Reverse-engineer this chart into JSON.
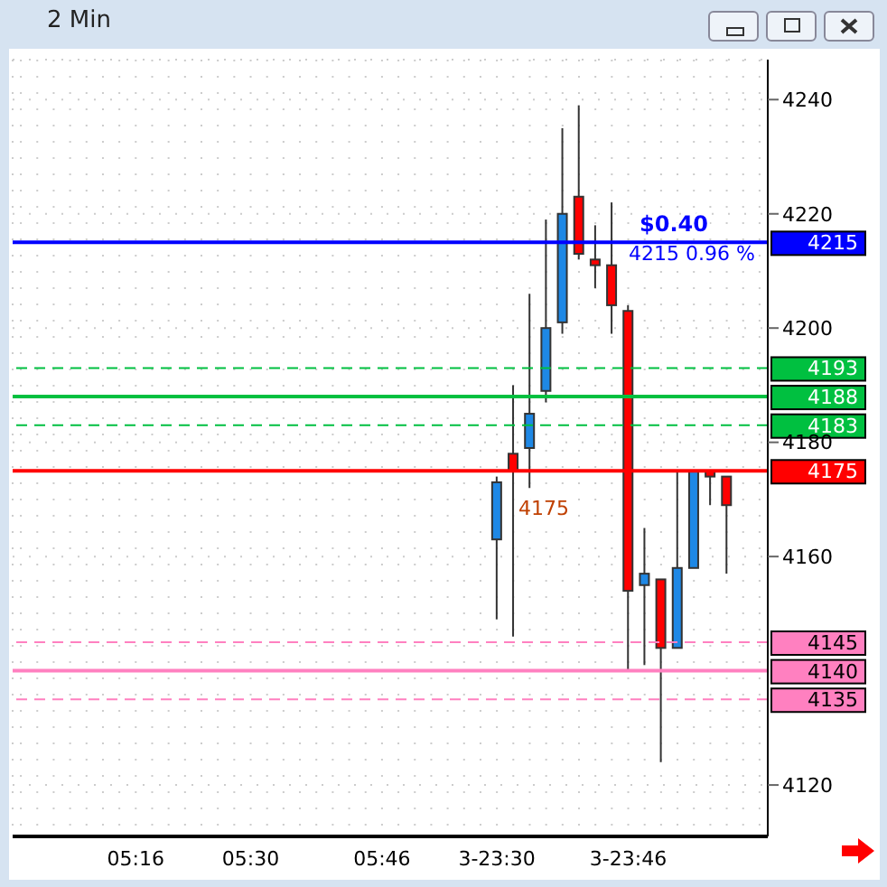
{
  "chart_data": {
    "type": "candlestick",
    "title": "2 Min",
    "categories": [
      null,
      null,
      null,
      null,
      null,
      null,
      null,
      "05:16",
      null,
      null,
      null,
      null,
      null,
      null,
      "05:30",
      null,
      null,
      null,
      null,
      null,
      null,
      null,
      "05:46",
      null,
      null,
      null,
      null,
      null,
      null,
      "3-23:30",
      null,
      null,
      null,
      null,
      null,
      null,
      null,
      "3-23:46",
      null,
      null,
      null,
      null,
      null,
      null,
      null,
      null
    ],
    "ohlc": [
      null,
      null,
      null,
      null,
      null,
      null,
      null,
      null,
      null,
      null,
      null,
      null,
      null,
      null,
      null,
      null,
      null,
      null,
      null,
      null,
      null,
      null,
      null,
      null,
      null,
      null,
      null,
      null,
      null,
      [
        4163,
        4174,
        4149,
        4173
      ],
      [
        4178,
        4190,
        4146,
        4175
      ],
      [
        4179,
        4206,
        4172,
        4185
      ],
      [
        4189,
        4219,
        4187,
        4200
      ],
      [
        4201,
        4235,
        4199,
        4220
      ],
      [
        4223,
        4239,
        4212,
        4213
      ],
      [
        4212,
        4218,
        4207,
        4211
      ],
      [
        4211,
        4222,
        4199,
        4204
      ],
      [
        4203,
        4204,
        4140,
        4154
      ],
      [
        4155,
        4165,
        4141,
        4157
      ],
      [
        4156,
        4156,
        4124,
        4144
      ],
      [
        4144,
        4175,
        4144,
        4158
      ],
      [
        4158,
        4175,
        4158,
        4175
      ],
      [
        4175,
        4175,
        4169,
        4174
      ],
      [
        4174,
        4174,
        4157,
        4169
      ],
      null,
      null
    ],
    "colors": [
      null,
      null,
      null,
      null,
      null,
      null,
      null,
      null,
      null,
      null,
      null,
      null,
      null,
      null,
      null,
      null,
      null,
      null,
      null,
      null,
      null,
      null,
      null,
      null,
      null,
      null,
      null,
      null,
      null,
      "#1e88e5",
      "#ff0000",
      "#1e88e5",
      "#1e88e5",
      "#1e88e5",
      "#ff0000",
      "#ff0000",
      "#ff0000",
      "#ff0000",
      "#1e88e5",
      "#ff0000",
      "#1e88e5",
      "#1e88e5",
      "#ff0000",
      "#ff0000",
      null,
      null
    ],
    "ylim": [
      4111,
      4247
    ],
    "yticks": [
      4120,
      4160,
      4180,
      4200,
      4220,
      4240
    ],
    "grid": true,
    "legend": false,
    "ref_lines": [
      {
        "axis": "y",
        "value": 4215,
        "label": "4215",
        "color": "#0000ff",
        "line_style": "solid"
      },
      {
        "axis": "y",
        "value": 4193,
        "label": "4193",
        "color": "#00c040",
        "line_style": "dashed"
      },
      {
        "axis": "y",
        "value": 4188,
        "label": "4188",
        "color": "#00c040",
        "line_style": "solid"
      },
      {
        "axis": "y",
        "value": 4183,
        "label": "4183",
        "color": "#00c040",
        "line_style": "dashed"
      },
      {
        "axis": "y",
        "value": 4175,
        "label": "4175",
        "color": "#ff0000",
        "line_style": "solid"
      },
      {
        "axis": "y",
        "value": 4145,
        "label": "4145",
        "color": "#ff80c0",
        "line_style": "dashed"
      },
      {
        "axis": "y",
        "value": 4140,
        "label": "4140",
        "color": "#ff80c0",
        "line_style": "solid"
      },
      {
        "axis": "y",
        "value": 4135,
        "label": "4135",
        "color": "#ff80c0",
        "line_style": "dashed"
      }
    ],
    "annotations": [
      "$0.40",
      "4215  0.96 %",
      "4175"
    ]
  }
}
